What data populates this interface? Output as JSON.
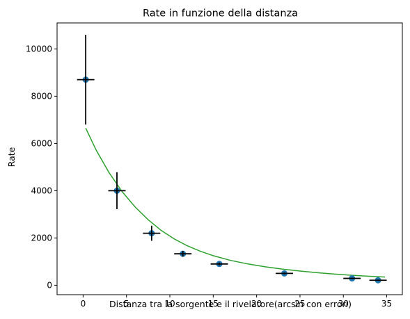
{
  "chart_data": {
    "type": "scatter",
    "title": "Rate in funzione della distanza",
    "xlabel": "Distanza tra la sorgente e il rivelatore(arcsin con errori)",
    "ylabel": "Rate",
    "xlim": [
      -3.0,
      36.8
    ],
    "ylim": [
      -400,
      11100
    ],
    "x_ticks": [
      0,
      5,
      10,
      15,
      20,
      25,
      30,
      35
    ],
    "y_ticks": [
      0,
      2000,
      4000,
      6000,
      8000,
      10000
    ],
    "grid": false,
    "points": [
      {
        "x": 0.3,
        "y": 8700,
        "xerr": 1.0,
        "yerr": 1900
      },
      {
        "x": 3.9,
        "y": 4000,
        "xerr": 1.0,
        "yerr": 780
      },
      {
        "x": 7.9,
        "y": 2200,
        "xerr": 1.0,
        "yerr": 320
      },
      {
        "x": 11.5,
        "y": 1330,
        "xerr": 1.0,
        "yerr": 120
      },
      {
        "x": 15.7,
        "y": 900,
        "xerr": 1.0,
        "yerr": 60
      },
      {
        "x": 23.2,
        "y": 500,
        "xerr": 1.0,
        "yerr": 40
      },
      {
        "x": 31.0,
        "y": 290,
        "xerr": 1.0,
        "yerr": 30
      },
      {
        "x": 34.0,
        "y": 210,
        "xerr": 1.0,
        "yerr": 25
      }
    ],
    "fit_curve": {
      "x": [
        0.3,
        1.5,
        3,
        4.5,
        6,
        7.5,
        9,
        10.5,
        12,
        13.5,
        15,
        17,
        19,
        21,
        23,
        25,
        27,
        29,
        31,
        33,
        34.8
      ],
      "y": [
        6650,
        5720,
        4760,
        3960,
        3310,
        2770,
        2320,
        1960,
        1670,
        1440,
        1250,
        1050,
        900,
        780,
        680,
        600,
        530,
        470,
        420,
        380,
        345
      ]
    },
    "colors": {
      "marker": "#1f77b4",
      "errorbar": "#000000",
      "fit_line": "#2ca02c",
      "axes": "#000000"
    }
  }
}
